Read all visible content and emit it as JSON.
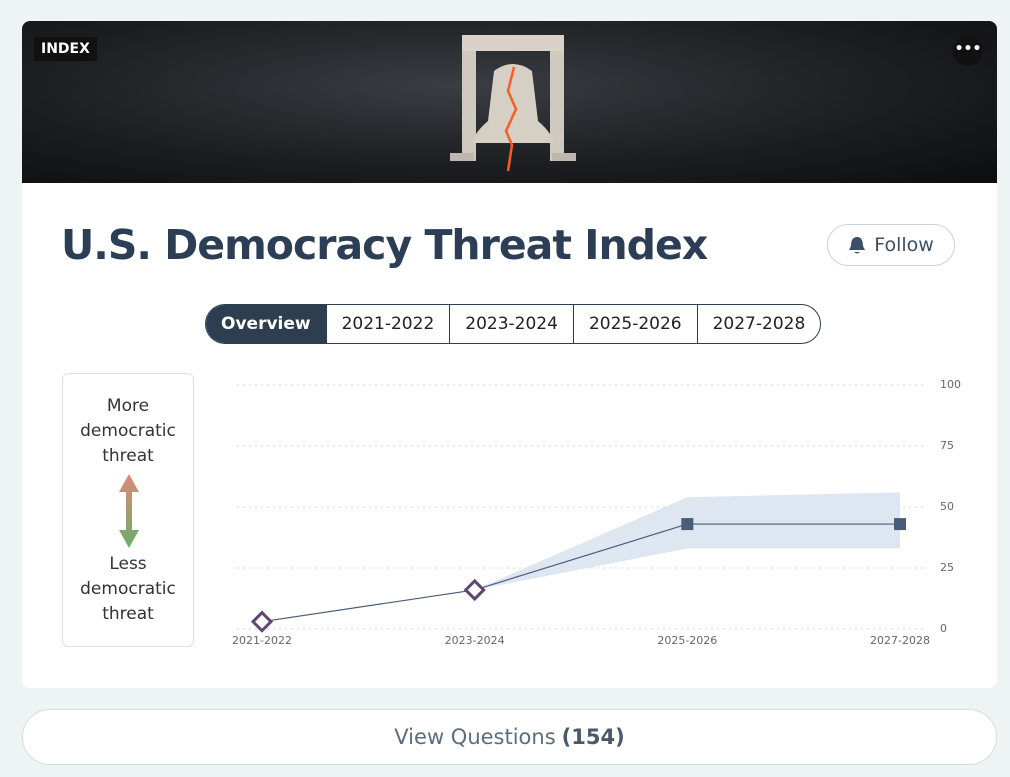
{
  "badge": "INDEX",
  "title": "U.S. Democracy Threat Index",
  "follow": "Follow",
  "tabs": [
    "Overview",
    "2021-2022",
    "2023-2024",
    "2025-2026",
    "2027-2028"
  ],
  "legend": {
    "top": "More democratic threat",
    "bottom": "Less democratic threat"
  },
  "view_questions": {
    "label": "View Questions",
    "count": "(154)"
  },
  "chart_data": {
    "type": "line",
    "categories": [
      "2021-2022",
      "2023-2024",
      "2025-2026",
      "2027-2028"
    ],
    "series": [
      {
        "color": "#4a5d78",
        "values": [
          3,
          16,
          43,
          43
        ],
        "markers": [
          "diamond",
          "diamond",
          "square",
          "square"
        ]
      }
    ],
    "band": {
      "color": "#dde6f1",
      "lower": [
        null,
        16,
        33,
        33
      ],
      "upper": [
        null,
        16,
        54,
        56
      ]
    },
    "ylim": [
      0,
      100
    ],
    "yticks": [
      0,
      25,
      50,
      75,
      100
    ],
    "grid": true
  }
}
